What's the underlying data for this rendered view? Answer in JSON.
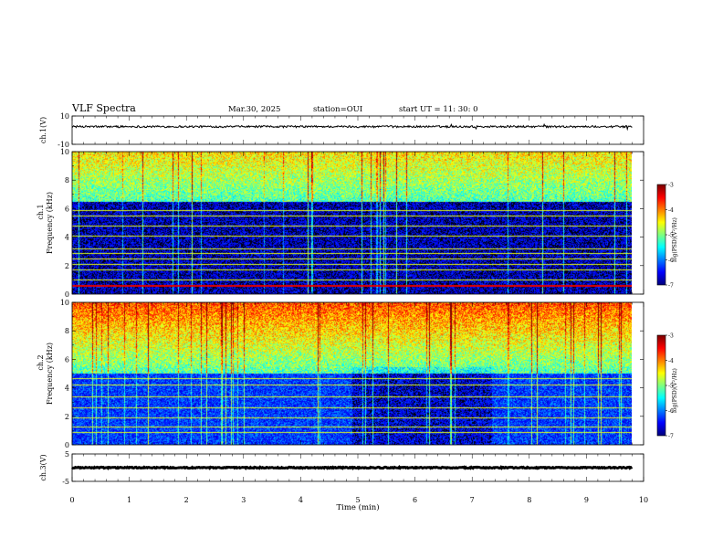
{
  "header": {
    "title": "VLF Spectra",
    "date": "Mar.30, 2025",
    "station": "station=OUI",
    "start": "start  UT  =   11: 30: 0"
  },
  "chart_data": [
    {
      "type": "line",
      "panel": "ch.1 waveform",
      "ylabel": "ch.1(V)",
      "ylim": [
        -10,
        10
      ],
      "yticks": [
        "10",
        "-10"
      ],
      "x_range_min": [
        0,
        9.8
      ],
      "baseline_value": 2.5,
      "color": "#000000"
    },
    {
      "type": "heatmap",
      "panel": "ch.1 spectrogram",
      "ylabel_top": "ch.1",
      "ylabel": "Frequency (kHz)",
      "ylim": [
        0,
        10
      ],
      "yticks": [
        "0",
        "2",
        "4",
        "6",
        "8",
        "10"
      ],
      "x_range_min": [
        0,
        9.8
      ],
      "colorbar": {
        "label": "log(PSD)(V²/Hz)",
        "range": [
          -7,
          -3
        ],
        "ticks": [
          "-3",
          "-4",
          "-5",
          "-6",
          "-7"
        ]
      },
      "dense_region_top_khz": 6.5,
      "horizontal_lines_khz": [
        0.6,
        1.0,
        1.7,
        2.1,
        2.5,
        2.9,
        3.2,
        4.1,
        4.8,
        5.5,
        5.9
      ]
    },
    {
      "type": "heatmap",
      "panel": "ch.2 spectrogram",
      "ylabel_top": "ch.2",
      "ylabel": "Frequency (kHz)",
      "ylim": [
        0,
        10
      ],
      "yticks": [
        "0",
        "2",
        "4",
        "6",
        "8",
        "10"
      ],
      "x_range_min": [
        0,
        9.8
      ],
      "colorbar": {
        "label": "log(PSD)(V²/Hz)",
        "range": [
          -7,
          -3
        ],
        "ticks": [
          "-3",
          "-4",
          "-5",
          "-6",
          "-7"
        ]
      },
      "dense_region_top_khz": 5.0,
      "horizontal_lines_khz": [
        0.9,
        1.3,
        1.9,
        2.6,
        3.4,
        4.2,
        4.7
      ]
    },
    {
      "type": "line",
      "panel": "ch.3 waveform",
      "ylabel": "ch.3(V)",
      "ylim": [
        -5,
        5
      ],
      "yticks": [
        "5",
        "-5"
      ],
      "x_range_min": [
        0,
        9.8
      ],
      "baseline_value": 0.0,
      "xlabel": "Time (min)",
      "xticks": [
        "0",
        "1",
        "2",
        "3",
        "4",
        "5",
        "6",
        "7",
        "8",
        "9",
        "10"
      ],
      "color": "#000000"
    }
  ]
}
